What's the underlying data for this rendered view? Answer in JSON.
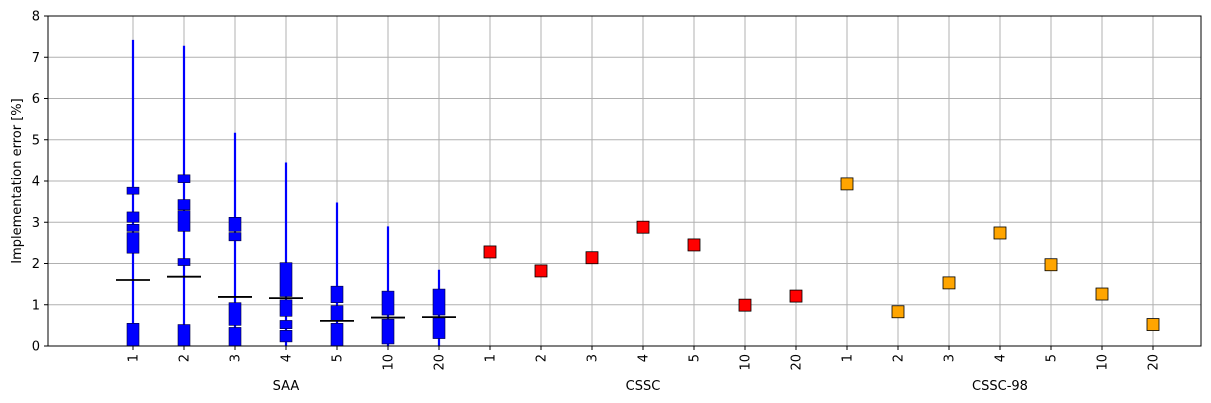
{
  "chart_data": {
    "type": "scatter",
    "title": "",
    "ylabel": "Implementation error [%]",
    "ylim": [
      0,
      8
    ],
    "yticks": [
      "0",
      "1",
      "2",
      "3",
      "4",
      "5",
      "6",
      "7",
      "8"
    ],
    "grid": true,
    "colors": {
      "saa": "#0000ff",
      "cssc": "#ff0000",
      "cssc98": "#ffa500",
      "grid": "#b0b0b0",
      "edge": "#000000"
    },
    "groups": [
      {
        "label": "SAA",
        "categories": [
          "1",
          "2",
          "3",
          "4",
          "5",
          "10",
          "20"
        ],
        "distributions": [
          {
            "min": 0,
            "max": 7.42,
            "mean": 1.6,
            "blocks": [
              [
                3.68,
                3.85
              ],
              [
                3.0,
                3.25
              ],
              [
                2.78,
                2.95
              ],
              [
                2.25,
                2.75
              ],
              [
                0,
                0.55
              ]
            ]
          },
          {
            "min": 0,
            "max": 7.28,
            "mean": 1.68,
            "blocks": [
              [
                3.96,
                4.15
              ],
              [
                3.3,
                3.55
              ],
              [
                2.78,
                3.28
              ],
              [
                1.95,
                2.12
              ],
              [
                0,
                0.52
              ]
            ]
          },
          {
            "min": 0,
            "max": 5.17,
            "mean": 1.19,
            "blocks": [
              [
                2.78,
                3.12
              ],
              [
                2.55,
                2.75
              ],
              [
                0.5,
                1.05
              ],
              [
                0,
                0.45
              ]
            ]
          },
          {
            "min": 0,
            "max": 4.45,
            "mean": 1.16,
            "blocks": [
              [
                1.2,
                2.02
              ],
              [
                0.72,
                1.12
              ],
              [
                0.42,
                0.62
              ],
              [
                0.1,
                0.38
              ]
            ]
          },
          {
            "min": 0,
            "max": 3.48,
            "mean": 0.61,
            "blocks": [
              [
                1.05,
                1.45
              ],
              [
                0.62,
                0.98
              ],
              [
                0,
                0.55
              ]
            ]
          },
          {
            "min": 0,
            "max": 2.9,
            "mean": 0.69,
            "blocks": [
              [
                0.75,
                1.33
              ],
              [
                0.05,
                0.65
              ]
            ]
          },
          {
            "min": 0,
            "max": 1.85,
            "mean": 0.7,
            "blocks": [
              [
                0.75,
                1.38
              ],
              [
                0.18,
                0.68
              ]
            ]
          }
        ]
      },
      {
        "label": "CSSC",
        "categories": [
          "1",
          "2",
          "3",
          "4",
          "5",
          "10",
          "20"
        ],
        "values": [
          2.28,
          1.82,
          2.14,
          2.88,
          2.45,
          0.99,
          1.21
        ]
      },
      {
        "label": "CSSC-98",
        "categories": [
          "1",
          "2",
          "3",
          "4",
          "5",
          "10",
          "20"
        ],
        "values": [
          3.93,
          0.83,
          1.53,
          2.74,
          1.97,
          1.26,
          0.52
        ]
      }
    ]
  }
}
